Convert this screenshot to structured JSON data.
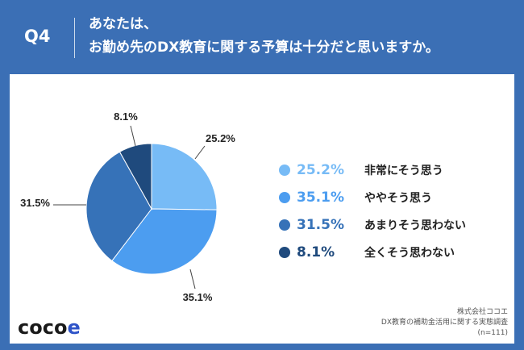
{
  "header": {
    "question_no": "Q4",
    "title_line1": "あなたは、",
    "title_line2": "お勤め先のDX教育に関する予算は十分だと思いますか。"
  },
  "chart_data": {
    "type": "pie",
    "slices": [
      {
        "label": "非常にそう思う",
        "value": 25.2,
        "display": "25.2%",
        "color": "#77bbf6"
      },
      {
        "label": "ややそう思う",
        "value": 35.1,
        "display": "35.1%",
        "color": "#4c9df0"
      },
      {
        "label": "あまりそう思わない",
        "value": 31.5,
        "display": "31.5%",
        "color": "#3672b8"
      },
      {
        "label": "全くそう思わない",
        "value": 8.1,
        "display": "8.1%",
        "color": "#1f4a7d"
      }
    ],
    "start": "12 o'clock, clockwise",
    "legend_position": "right"
  },
  "legend": [
    {
      "pct": "25.2%",
      "text": "非常にそう思う",
      "color": "#77bbf6"
    },
    {
      "pct": "35.1%",
      "text": "ややそう思う",
      "color": "#4c9df0"
    },
    {
      "pct": "31.5%",
      "text": "あまりそう思わない",
      "color": "#3672b8"
    },
    {
      "pct": "8.1%",
      "text": "全くそう思わない",
      "color": "#1f4a7d"
    }
  ],
  "footer": {
    "logo_main": "coco",
    "logo_accent": "e",
    "source_line1": "株式会社ココエ",
    "source_line2": "DX教育の補助金活用に関する実態調査",
    "source_line3": "(n=111)"
  },
  "colors": {
    "brand": "#3b6fb5"
  }
}
